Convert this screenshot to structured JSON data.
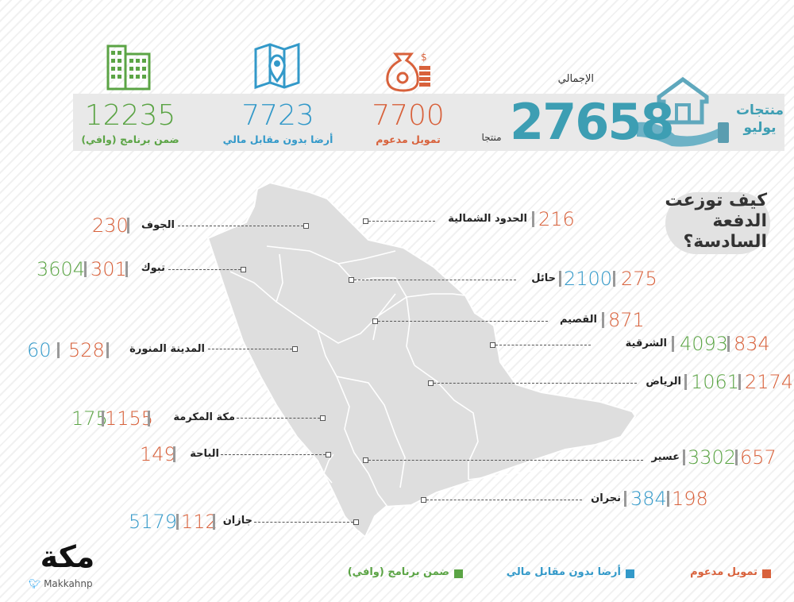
{
  "header": {
    "main_title_line1": "منتجات",
    "main_title_line2": "يوليو",
    "total_label": "الإجمالي",
    "total_value": "27658",
    "total_unit": "منتجا"
  },
  "stats": [
    {
      "value": "7700",
      "label": "تمويل مدعوم",
      "icon": "money-bag-icon",
      "color": "#d8613b"
    },
    {
      "value": "7723",
      "label": "أرضا بدون مقابل مالي",
      "icon": "map-location-icon",
      "color": "#3399c9"
    },
    {
      "value": "12235",
      "label": "ضمن برنامج (وافي)",
      "icon": "building-icon",
      "color": "#5ba445"
    }
  ],
  "question": {
    "line1": "كيف توزعت",
    "line2": "الدفعة السادسة؟"
  },
  "regions": [
    {
      "name": "الحدود الشمالية",
      "values": [
        "216"
      ],
      "colors": [
        "#d8613b"
      ]
    },
    {
      "name": "الجوف",
      "values": [
        "230"
      ],
      "colors": [
        "#d8613b"
      ]
    },
    {
      "name": "تبوك",
      "values": [
        "301",
        "3604"
      ],
      "colors": [
        "#d8613b",
        "#5ba445"
      ]
    },
    {
      "name": "حائل",
      "values": [
        "275",
        "2100"
      ],
      "colors": [
        "#d8613b",
        "#3399c9"
      ]
    },
    {
      "name": "القصيم",
      "values": [
        "871"
      ],
      "colors": [
        "#d8613b"
      ]
    },
    {
      "name": "المدينة المنورة",
      "values": [
        "528",
        "60"
      ],
      "colors": [
        "#d8613b",
        "#3399c9"
      ]
    },
    {
      "name": "الشرقية",
      "values": [
        "834",
        "4093"
      ],
      "colors": [
        "#d8613b",
        "#5ba445"
      ]
    },
    {
      "name": "الرياض",
      "values": [
        "2174",
        "1061"
      ],
      "colors": [
        "#d8613b",
        "#5ba445"
      ]
    },
    {
      "name": "مكة المكرمة",
      "values": [
        "1155",
        "175"
      ],
      "colors": [
        "#d8613b",
        "#5ba445"
      ]
    },
    {
      "name": "الباحة",
      "values": [
        "149"
      ],
      "colors": [
        "#d8613b"
      ]
    },
    {
      "name": "عسير",
      "values": [
        "657",
        "3302"
      ],
      "colors": [
        "#d8613b",
        "#5ba445"
      ]
    },
    {
      "name": "نجران",
      "values": [
        "198",
        "384"
      ],
      "colors": [
        "#d8613b",
        "#3399c9"
      ]
    },
    {
      "name": "جازان",
      "values": [
        "112",
        "5179"
      ],
      "colors": [
        "#d8613b",
        "#3399c9"
      ]
    }
  ],
  "legend": [
    {
      "label": "تمويل مدعوم",
      "color": "#d8613b"
    },
    {
      "label": "أرضا بدون مقابل مالي",
      "color": "#3399c9"
    },
    {
      "label": "ضمن برنامج (وافي)",
      "color": "#5ba445"
    }
  ],
  "brand": {
    "logo_text": "مكة",
    "handle": "Makkahnp"
  }
}
